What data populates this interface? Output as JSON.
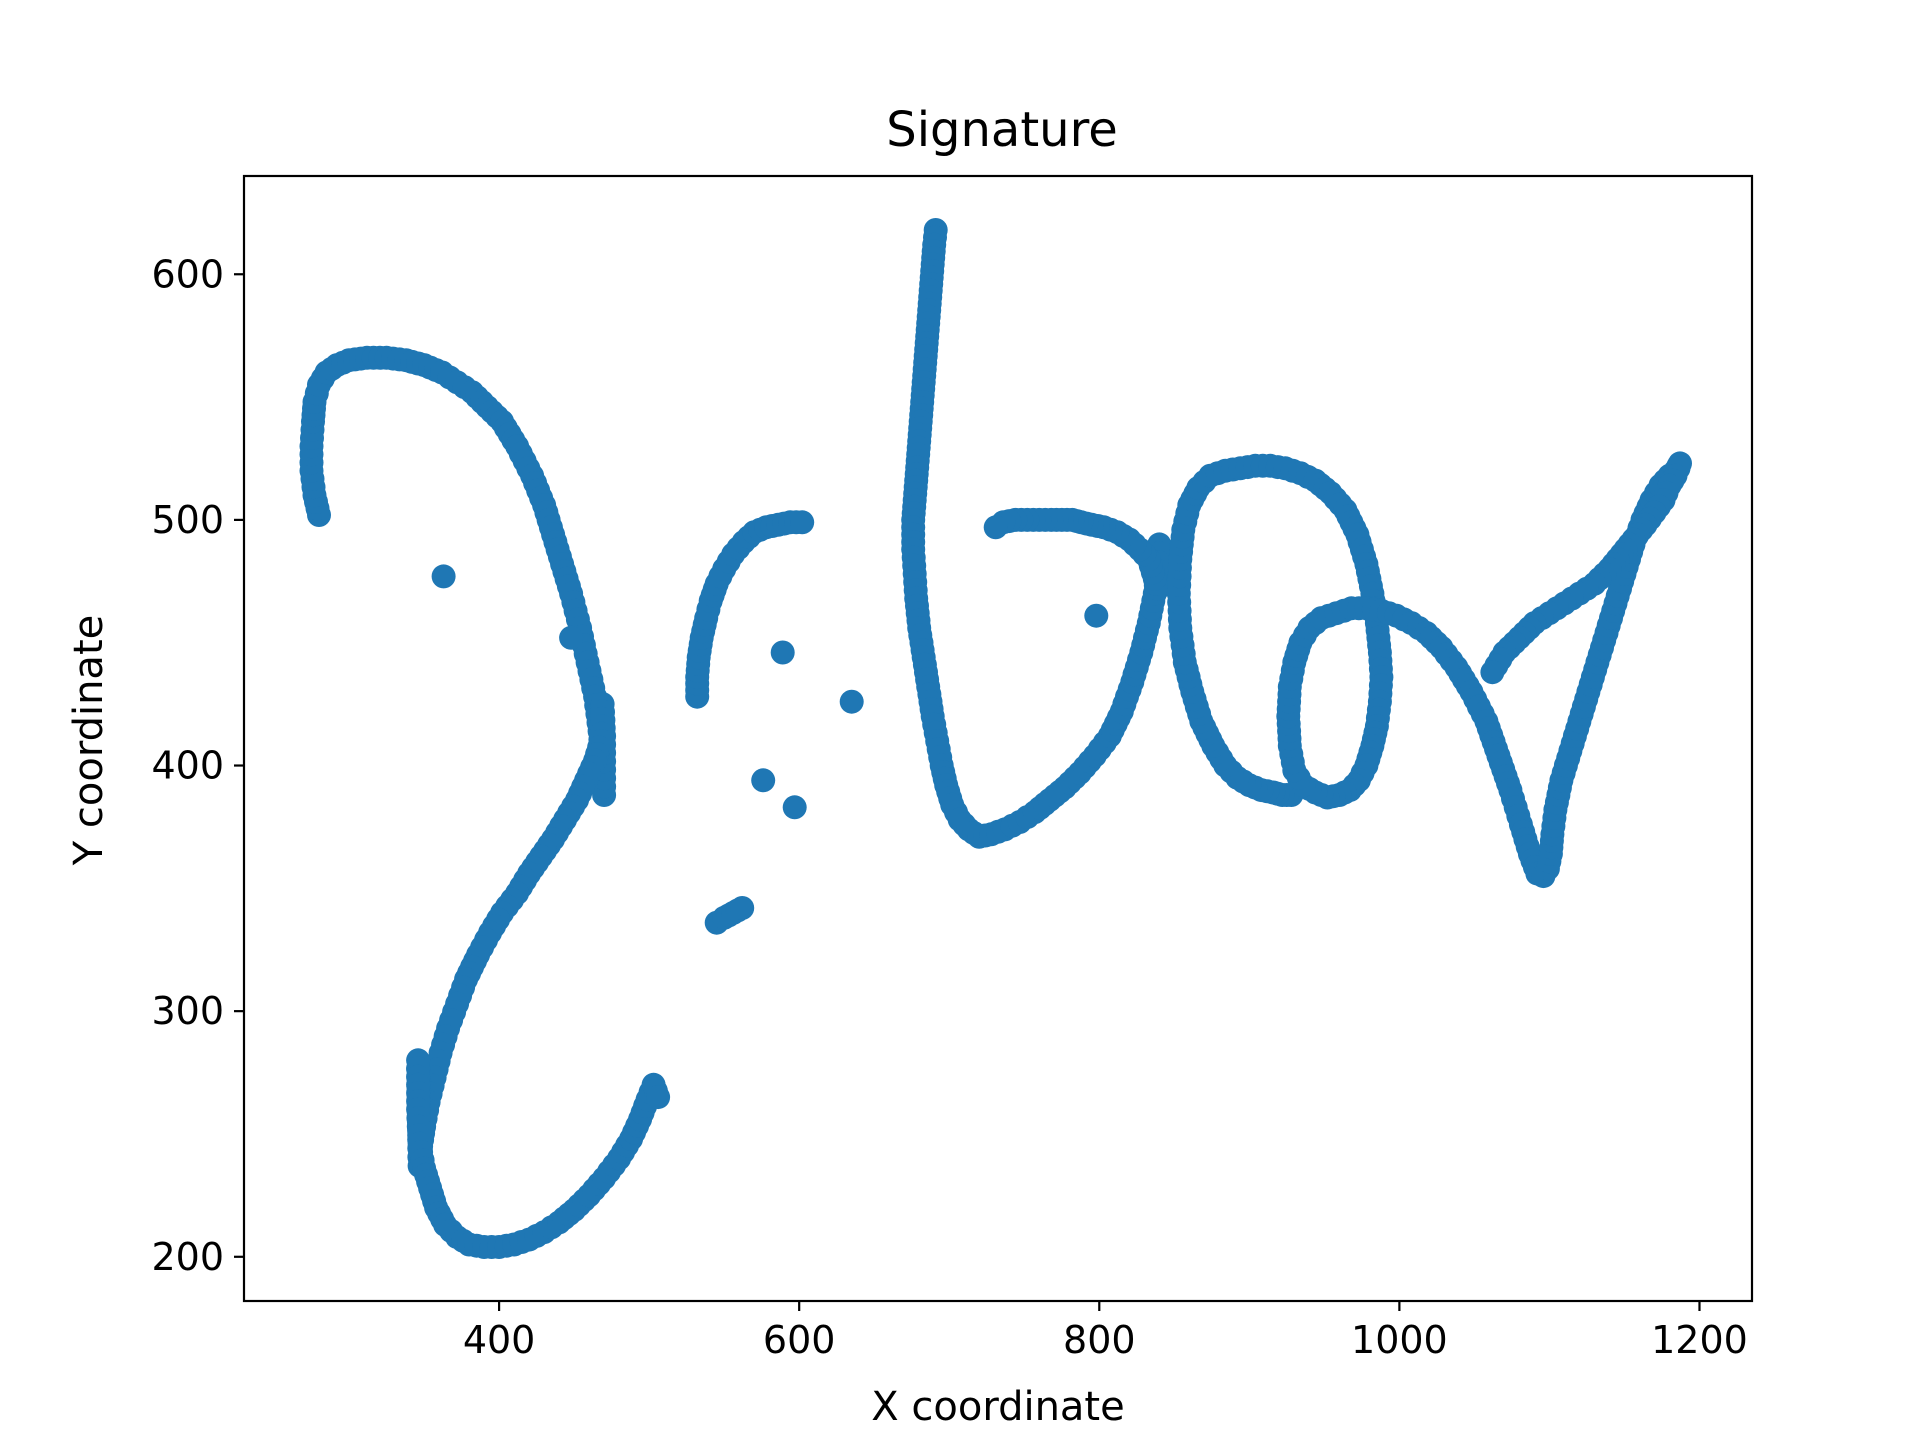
{
  "chart_data": {
    "type": "scatter",
    "title": "Signature",
    "xlabel": "X coordinate",
    "ylabel": "Y coordinate",
    "xlim": [
      230,
      1235
    ],
    "ylim": [
      182,
      640
    ],
    "xticks": [
      400,
      600,
      800,
      1000,
      1200
    ],
    "yticks": [
      200,
      300,
      400,
      500,
      600
    ],
    "xtick_labels": [
      "400",
      "600",
      "800",
      "1000",
      "1200"
    ],
    "ytick_labels": [
      "200",
      "300",
      "400",
      "500",
      "600"
    ],
    "grid": false,
    "legend": "none",
    "marker_color": "#1f77b4",
    "strokes": [
      {
        "x": [
          280,
          277,
          275,
          275,
          276,
          277,
          280,
          285,
          292,
          300,
          312,
          325,
          338,
          350,
          362,
          372,
          382,
          392,
          402,
          412,
          422,
          430,
          436,
          442,
          448,
          454,
          459,
          464,
          467,
          469,
          470,
          470,
          469,
          468,
          464,
          458,
          452,
          444,
          436,
          428,
          420,
          412,
          402,
          394,
          386,
          378,
          372,
          366,
          361,
          357,
          353,
          350,
          348,
          347,
          346,
          346,
          347,
          350,
          354,
          358,
          364,
          372,
          380,
          390,
          400,
          410,
          420,
          430,
          440,
          450,
          460,
          470,
          480,
          488,
          494,
          499,
          503,
          506
        ],
        "y": [
          502,
          510,
          520,
          530,
          540,
          548,
          555,
          560,
          563,
          565,
          566,
          566,
          565,
          563,
          560,
          556,
          552,
          546,
          540,
          530,
          518,
          506,
          494,
          482,
          470,
          456,
          442,
          428,
          414,
          400,
          388,
          412,
          425,
          410,
          402,
          394,
          386,
          378,
          370,
          363,
          356,
          348,
          340,
          332,
          323,
          313,
          303,
          293,
          283,
          273,
          263,
          253,
          245,
          237,
          280,
          260,
          246,
          236,
          228,
          220,
          213,
          208,
          205,
          204,
          204,
          205,
          207,
          210,
          214,
          219,
          225,
          232,
          240,
          248,
          256,
          264,
          270,
          265
        ]
      },
      {
        "x": [
          532,
          532,
          533,
          535,
          538,
          541,
          545,
          550,
          556,
          563,
          570,
          578,
          586,
          594,
          602
        ],
        "y": [
          428,
          436,
          444,
          452,
          460,
          467,
          474,
          480,
          486,
          491,
          495,
          497,
          498,
          499,
          499
        ]
      },
      {
        "x": [
          545,
          550,
          556,
          562
        ],
        "y": [
          336,
          338,
          340,
          342
        ]
      },
      {
        "x": [
          691,
          690,
          689,
          688,
          687,
          686,
          685,
          684,
          683,
          682,
          681,
          680,
          679,
          678,
          677,
          676,
          676,
          677,
          678,
          680,
          683,
          686,
          689,
          692,
          695,
          698,
          702,
          707,
          713,
          720,
          728,
          737,
          747,
          757,
          767,
          777,
          787,
          797,
          807,
          815,
          822,
          828,
          833,
          837,
          839,
          840,
          839,
          837,
          833,
          827,
          820,
          812,
          803,
          795,
          788,
          782,
          775,
          768,
          760,
          752,
          744,
          736,
          731
        ],
        "y": [
          618,
          612,
          604,
          596,
          588,
          580,
          572,
          564,
          556,
          548,
          540,
          532,
          524,
          516,
          508,
          500,
          488,
          478,
          468,
          456,
          444,
          432,
          420,
          410,
          400,
          392,
          384,
          378,
          374,
          371,
          372,
          374,
          377,
          381,
          386,
          391,
          397,
          404,
          412,
          422,
          434,
          446,
          458,
          470,
          480,
          490,
          472,
          476,
          484,
          488,
          492,
          495,
          497,
          498,
          499,
          500,
          500,
          500,
          500,
          500,
          500,
          499,
          497
        ]
      },
      {
        "x": [
          928,
          922,
          916,
          908,
          900,
          892,
          884,
          876,
          868,
          862,
          857,
          854,
          853,
          854,
          856,
          860,
          866,
          874,
          884,
          894,
          904,
          914,
          924,
          934,
          944,
          954,
          964,
          972,
          978,
          982,
          985,
          987,
          988,
          987,
          985,
          982,
          978,
          973,
          967,
          960,
          952,
          944,
          936,
          930,
          927,
          926,
          927,
          930,
          934,
          940,
          948,
          958,
          968,
          978,
          988,
          998,
          1008,
          1018,
          1028,
          1038,
          1048,
          1058,
          1066,
          1074,
          1081,
          1087,
          1092,
          1096,
          1099,
          1101,
          1102,
          1104,
          1108,
          1114,
          1120,
          1126,
          1132,
          1138,
          1144,
          1150,
          1156,
          1162,
          1168,
          1174,
          1180,
          1184,
          1186,
          1187,
          1186,
          1184,
          1180,
          1176,
          1170,
          1164,
          1156,
          1148,
          1140,
          1130,
          1120,
          1110,
          1100,
          1090,
          1080,
          1070,
          1062
        ],
        "y": [
          388,
          388,
          389,
          390,
          392,
          395,
          400,
          408,
          418,
          430,
          442,
          456,
          470,
          484,
          496,
          506,
          513,
          518,
          520,
          521,
          522,
          522,
          521,
          519,
          516,
          511,
          504,
          494,
          482,
          470,
          458,
          446,
          436,
          426,
          416,
          408,
          400,
          394,
          390,
          388,
          387,
          389,
          392,
          398,
          408,
          420,
          432,
          442,
          450,
          456,
          460,
          462,
          464,
          464,
          463,
          461,
          458,
          454,
          448,
          440,
          430,
          418,
          404,
          390,
          376,
          364,
          356,
          355,
          358,
          364,
          372,
          382,
          394,
          406,
          418,
          430,
          442,
          454,
          466,
          478,
          490,
          500,
          508,
          514,
          518,
          520,
          522,
          523,
          521,
          518,
          514,
          508,
          503,
          498,
          492,
          486,
          480,
          474,
          470,
          466,
          462,
          458,
          452,
          446,
          438
        ]
      }
    ],
    "isolated_points": [
      {
        "x": 363,
        "y": 477
      },
      {
        "x": 448,
        "y": 452
      },
      {
        "x": 589,
        "y": 446
      },
      {
        "x": 635,
        "y": 426
      },
      {
        "x": 576,
        "y": 394
      },
      {
        "x": 597,
        "y": 383
      },
      {
        "x": 798,
        "y": 461
      }
    ]
  }
}
